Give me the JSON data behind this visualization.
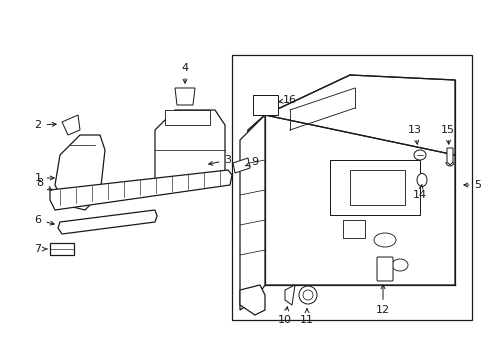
{
  "background_color": "#ffffff",
  "line_color": "#1a1a1a",
  "line_width": 0.9,
  "label_fontsize": 8.0,
  "figsize": [
    4.89,
    3.6
  ],
  "dpi": 100
}
